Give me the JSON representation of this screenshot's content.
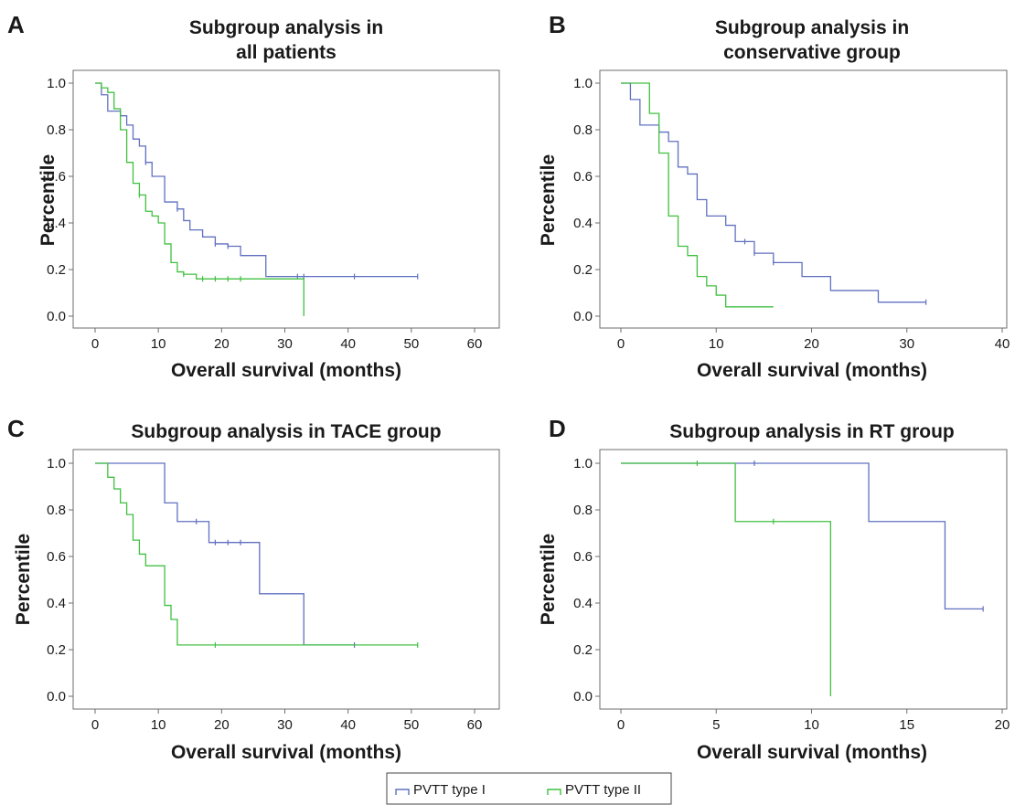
{
  "legend": {
    "entries": [
      {
        "label": "PVTT type I",
        "color": "#6070c0"
      },
      {
        "label": "PVTT type II",
        "color": "#40c040"
      }
    ]
  },
  "chart_data": [
    {
      "panel": "A",
      "type": "line",
      "step": true,
      "title": [
        "Subgroup analysis in",
        "all patients"
      ],
      "xlabel": "Overall survival (months)",
      "ylabel": "Percentile",
      "xlim": [
        0,
        60
      ],
      "ylim": [
        0,
        1
      ],
      "xticks": [
        "0",
        "10",
        "20",
        "30",
        "40",
        "50",
        "60"
      ],
      "yticks": [
        "0.0",
        "0.2",
        "0.4",
        "0.6",
        "0.8",
        "1.0"
      ],
      "series": [
        {
          "name": "PVTT type I",
          "color": "#6070c0",
          "x": [
            0,
            1,
            2,
            4,
            5,
            6,
            7,
            8,
            9,
            11,
            12,
            13,
            14,
            15,
            17,
            19,
            21,
            23,
            27,
            33,
            51
          ],
          "y": [
            1.0,
            0.95,
            0.88,
            0.86,
            0.82,
            0.76,
            0.73,
            0.66,
            0.6,
            0.49,
            0.49,
            0.46,
            0.41,
            0.37,
            0.34,
            0.31,
            0.3,
            0.26,
            0.17,
            0.17,
            0.17
          ],
          "censored_x": [
            8,
            13,
            19,
            21,
            32,
            33,
            41,
            51
          ]
        },
        {
          "name": "PVTT type II",
          "color": "#40c040",
          "x": [
            0,
            1,
            2,
            3,
            4,
            5,
            6,
            7,
            8,
            9,
            10,
            11,
            12,
            13,
            14,
            16,
            33,
            33
          ],
          "y": [
            1.0,
            0.98,
            0.96,
            0.89,
            0.8,
            0.66,
            0.57,
            0.52,
            0.45,
            0.43,
            0.4,
            0.31,
            0.23,
            0.19,
            0.18,
            0.16,
            0.16,
            0.0
          ],
          "censored_x": [
            7,
            14,
            17,
            19,
            21,
            23,
            33
          ]
        }
      ]
    },
    {
      "panel": "B",
      "type": "line",
      "step": true,
      "title": [
        "Subgroup analysis in",
        "conservative group"
      ],
      "xlabel": "Overall survival (months)",
      "ylabel": "Percentile",
      "xlim": [
        0,
        40
      ],
      "ylim": [
        0,
        1
      ],
      "xticks": [
        "0",
        "10",
        "20",
        "30",
        "40"
      ],
      "yticks": [
        "0.0",
        "0.2",
        "0.4",
        "0.6",
        "0.8",
        "1.0"
      ],
      "series": [
        {
          "name": "PVTT type I",
          "color": "#6070c0",
          "x": [
            0,
            1,
            2,
            4,
            5,
            6,
            7,
            8,
            9,
            11,
            12,
            13,
            14,
            16,
            19,
            22,
            27,
            32
          ],
          "y": [
            1.0,
            0.93,
            0.82,
            0.79,
            0.75,
            0.64,
            0.61,
            0.5,
            0.43,
            0.39,
            0.32,
            0.32,
            0.27,
            0.23,
            0.17,
            0.11,
            0.06,
            0.06
          ],
          "censored_x": [
            13,
            14,
            16,
            32
          ]
        },
        {
          "name": "PVTT type II",
          "color": "#40c040",
          "x": [
            0,
            3,
            4,
            5,
            6,
            7,
            8,
            9,
            10,
            11,
            16
          ],
          "y": [
            1.0,
            0.87,
            0.7,
            0.43,
            0.3,
            0.26,
            0.17,
            0.13,
            0.09,
            0.04,
            0.04
          ],
          "censored_x": []
        }
      ]
    },
    {
      "panel": "C",
      "type": "line",
      "step": true,
      "title": [
        "Subgroup analysis in TACE group"
      ],
      "xlabel": "Overall survival (months)",
      "ylabel": "Percentile",
      "xlim": [
        0,
        60
      ],
      "ylim": [
        0,
        1
      ],
      "xticks": [
        "0",
        "10",
        "20",
        "30",
        "40",
        "50",
        "60"
      ],
      "yticks": [
        "0.0",
        "0.2",
        "0.4",
        "0.6",
        "0.8",
        "1.0"
      ],
      "series": [
        {
          "name": "PVTT type I",
          "color": "#6070c0",
          "x": [
            0,
            11,
            13,
            18,
            26,
            33,
            41
          ],
          "y": [
            1.0,
            0.83,
            0.75,
            0.66,
            0.44,
            0.22,
            0.22
          ],
          "censored_x": [
            16,
            19,
            21,
            23,
            41
          ]
        },
        {
          "name": "PVTT type II",
          "color": "#40c040",
          "x": [
            0,
            2,
            3,
            4,
            5,
            6,
            7,
            8,
            11,
            12,
            13,
            51
          ],
          "y": [
            1.0,
            0.94,
            0.89,
            0.83,
            0.78,
            0.67,
            0.61,
            0.56,
            0.39,
            0.33,
            0.22,
            0.22
          ],
          "censored_x": [
            19,
            51
          ]
        }
      ]
    },
    {
      "panel": "D",
      "type": "line",
      "step": true,
      "title": [
        "Subgroup analysis in RT group"
      ],
      "xlabel": "Overall survival (months)",
      "ylabel": "Percentile",
      "xlim": [
        0,
        20
      ],
      "ylim": [
        0,
        1
      ],
      "xticks": [
        "0",
        "5",
        "10",
        "15",
        "20"
      ],
      "yticks": [
        "0.0",
        "0.2",
        "0.4",
        "0.6",
        "0.8",
        "1.0"
      ],
      "series": [
        {
          "name": "PVTT type I",
          "color": "#6070c0",
          "x": [
            0,
            13,
            17,
            19
          ],
          "y": [
            1.0,
            0.75,
            0.375,
            0.375
          ],
          "censored_x": [
            7,
            19
          ]
        },
        {
          "name": "PVTT type II",
          "color": "#40c040",
          "x": [
            0,
            6,
            11
          ],
          "y": [
            1.0,
            0.75,
            0.0
          ],
          "censored_x": [
            4,
            8
          ]
        }
      ]
    }
  ]
}
